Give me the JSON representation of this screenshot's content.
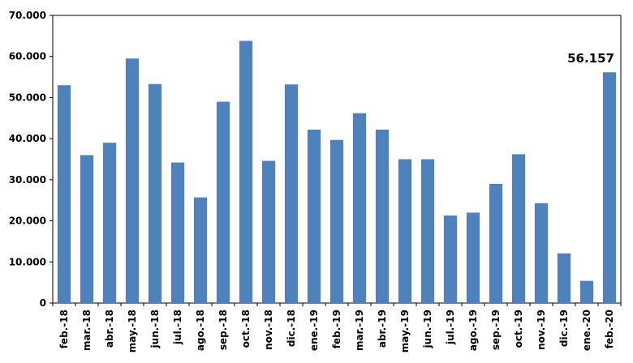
{
  "chart_data": {
    "type": "bar",
    "categories": [
      "feb.-18",
      "mar.-18",
      "abr.-18",
      "may.-18",
      "jun.-18",
      "jul.-18",
      "ago.-18",
      "sep.-18",
      "oct.-18",
      "nov.-18",
      "dic.-18",
      "ene.-19",
      "feb.-19",
      "mar.-19",
      "abr.-19",
      "may.-19",
      "jun.-19",
      "jul.-19",
      "ago.-19",
      "sep.-19",
      "oct.-19",
      "nov.-19",
      "dic.-19",
      "ene.-20",
      "feb.-20"
    ],
    "values": [
      53000,
      36000,
      39000,
      59500,
      53300,
      34200,
      25700,
      49000,
      63800,
      34600,
      53200,
      42200,
      39700,
      46200,
      42200,
      35000,
      35000,
      21300,
      22000,
      29000,
      36200,
      24300,
      12100,
      5400,
      56157
    ],
    "ylim": [
      0,
      70000
    ],
    "yticks": [
      "0",
      "10.000",
      "20.000",
      "30.000",
      "40.000",
      "50.000",
      "60.000",
      "70.000"
    ],
    "ytick_values": [
      0,
      10000,
      20000,
      30000,
      40000,
      50000,
      60000,
      70000
    ],
    "data_labels": [
      {
        "category": "feb.-20",
        "text": "56.157"
      }
    ],
    "bar_color": "#4F81BD",
    "grid": false,
    "title": "",
    "xlabel": "",
    "ylabel": ""
  }
}
